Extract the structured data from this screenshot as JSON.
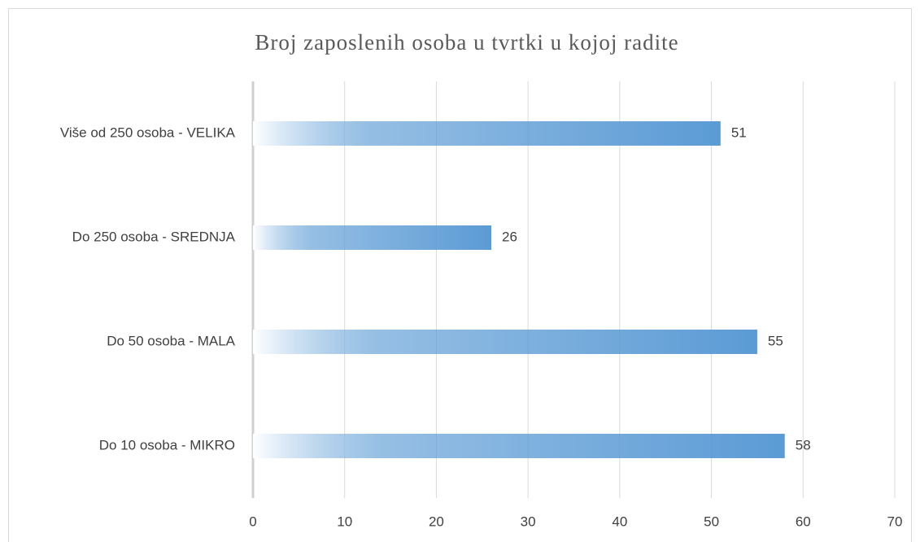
{
  "chart_data": {
    "type": "hbar",
    "title": "Broj zaposlenih osoba u tvrtki u kojoj radite",
    "categories": [
      "Više od 250 osoba - VELIKA",
      "Do 250 osoba - SREDNJA",
      "Do 50 osoba - MALA",
      "Do 10 osoba - MIKRO"
    ],
    "values": [
      51,
      26,
      55,
      58
    ],
    "color": "#5b9bd5",
    "xlim": [
      0,
      70
    ],
    "xticks": [
      0,
      10,
      20,
      30,
      40,
      50,
      60,
      70
    ],
    "grid": true
  }
}
